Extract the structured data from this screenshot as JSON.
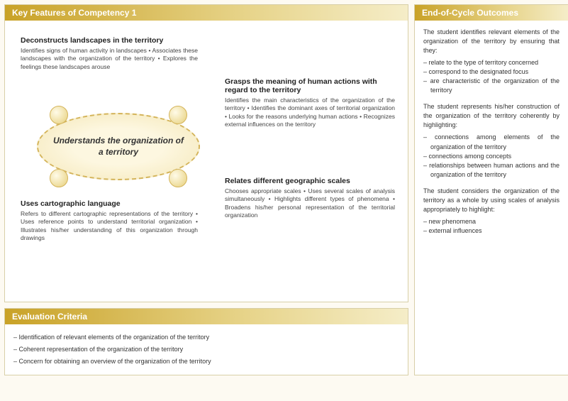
{
  "colors": {
    "header_gradient_from": "#c9a227",
    "header_gradient_to": "#f5edc8",
    "panel_border": "#d8cfa8",
    "page_bg": "#fdfaf2",
    "hub_border": "#d4b45a",
    "hub_fill_inner": "#fdf7e0",
    "hub_fill_outer": "#f4e7b8"
  },
  "key_features": {
    "title": "Key Features of Competency 1",
    "hub_label": "Understands the organization of a territory",
    "features": [
      {
        "heading": "Deconstructs landscapes in the territory",
        "body": "Identifies signs of human activity in landscapes • Associates these landscapes with the organization of the territory • Explores the feelings these landscapes arouse"
      },
      {
        "heading": "Grasps the meaning of human actions with regard to the territory",
        "body": "Identifies the main characteristics of the organization of the territory • Identifies the dominant axes of territorial organization • Looks for the reasons underlying human actions • Recognizes external influences on the territory"
      },
      {
        "heading": "Uses cartographic language",
        "body": "Refers to different cartographic representations of the territory • Uses reference points to understand territorial organization • Illustrates his/her understanding of this organization through drawings"
      },
      {
        "heading": "Relates different geographic scales",
        "body": "Chooses appropriate scales • Uses several scales of analysis simultaneously • Highlights different types of phenomena • Broadens his/her personal representation of the territorial organization"
      }
    ]
  },
  "outcomes": {
    "title": "End-of-Cycle Outcomes",
    "para1": "The student identifies relevant elements of the organization of the territory by ensuring that they:",
    "list1": [
      "relate to the type of territory concerned",
      "correspond to the designated focus",
      "are characteristic of the organization of the territory"
    ],
    "para2": "The student represents his/her construction of the organization of the territory coherently by highlighting:",
    "list2": [
      "connections among elements of the organization of the territory",
      "connections among concepts",
      "relationships between human actions and the organization of the territory"
    ],
    "para3": "The student considers the organization of the territory as a whole by using scales of analysis appropriately to highlight:",
    "list3": [
      "new phenomena",
      "external influences"
    ]
  },
  "evaluation": {
    "title": "Evaluation Criteria",
    "items": [
      "Identification of relevant elements of the organization of the territory",
      "Coherent representation of the organization of the territory",
      "Concern for obtaining an overview of the organization of the territory"
    ]
  }
}
